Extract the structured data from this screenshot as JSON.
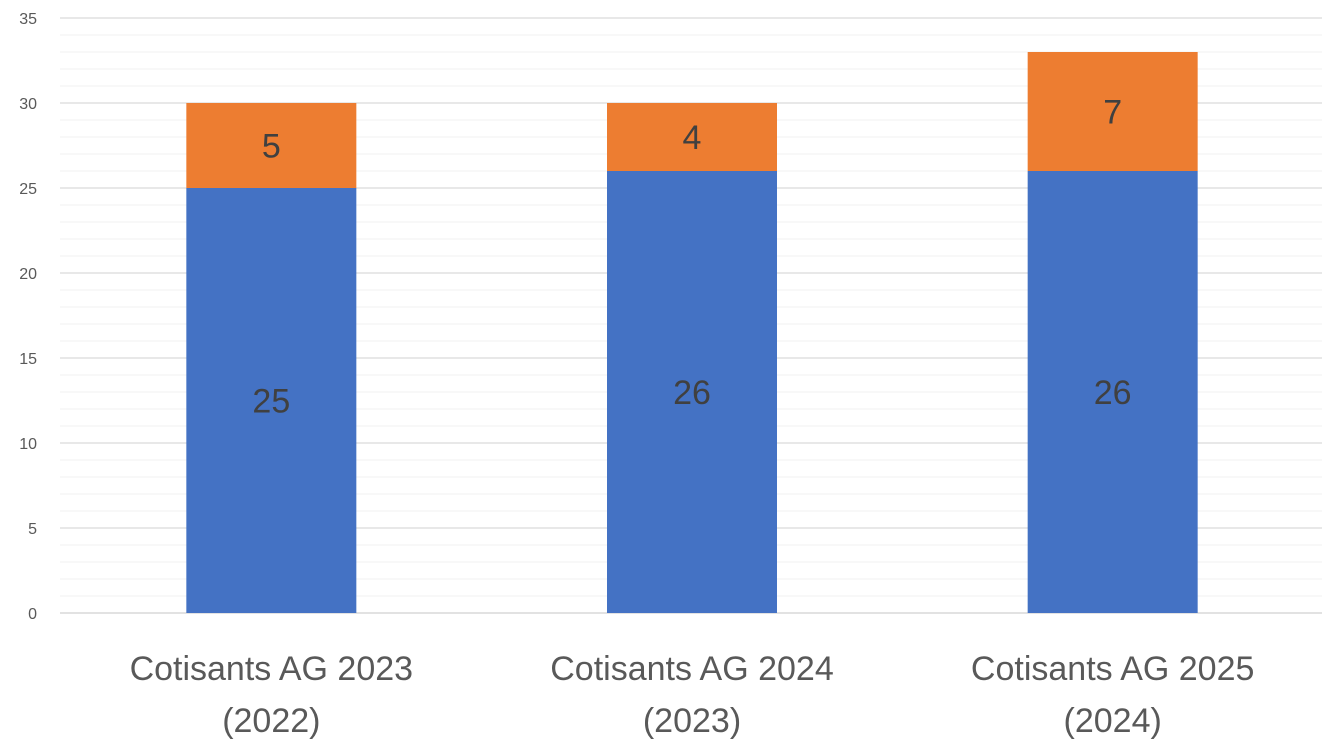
{
  "chart_data": {
    "type": "bar",
    "stacked": true,
    "title": "",
    "xlabel": "",
    "ylabel": "",
    "ylim": [
      0,
      35
    ],
    "y_ticks": [
      0,
      5,
      10,
      15,
      20,
      25,
      30,
      35
    ],
    "y_tick_labels": [
      "0",
      "5",
      "10",
      "15",
      "20",
      "25",
      "30",
      "35"
    ],
    "major_grid_step": 5,
    "minor_grid_step": 1,
    "grid": true,
    "legend": "none",
    "categories": [
      [
        "Cotisants AG 2023",
        "(2022)"
      ],
      [
        "Cotisants AG 2024",
        "(2023)"
      ],
      [
        "Cotisants AG 2025",
        "(2024)"
      ]
    ],
    "series": [
      {
        "values": [
          25,
          26,
          26
        ],
        "color": "#4472C4"
      },
      {
        "values": [
          5,
          4,
          7
        ],
        "color": "#ED7D31"
      }
    ],
    "data_labels": true
  }
}
